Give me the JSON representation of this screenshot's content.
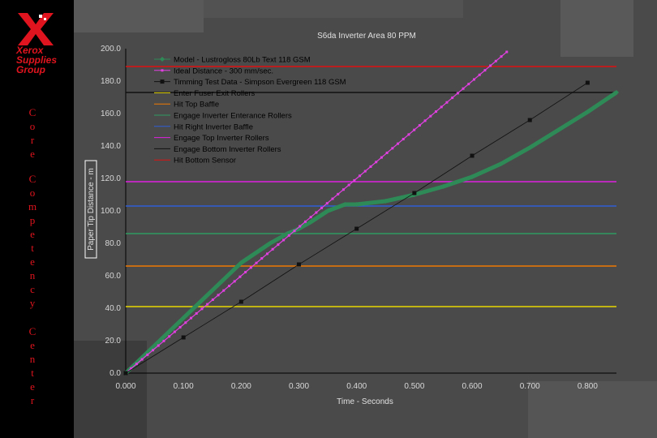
{
  "branding": {
    "logo_icon": "xerox-x-logo-icon",
    "brand_lines": [
      "Xerox",
      "Supplies",
      "Group"
    ],
    "vertical_words": [
      "Core",
      "Competency",
      "Center"
    ],
    "brand_color": "#e0141e"
  },
  "chart_data": {
    "type": "line",
    "title": "S6da Inverter Area 80 PPM",
    "xlabel": "Time - Seconds",
    "ylabel": "Paper Tip Distance - m",
    "xlim": [
      0,
      0.85
    ],
    "ylim": [
      0,
      200
    ],
    "x_ticks": [
      "0.000",
      "0.100",
      "0.200",
      "0.300",
      "0.400",
      "0.500",
      "0.600",
      "0.700",
      "0.800"
    ],
    "y_ticks": [
      "0.0",
      "20.0",
      "40.0",
      "60.0",
      "80.0",
      "100.0",
      "120.0",
      "140.0",
      "160.0",
      "180.0",
      "200.0"
    ],
    "grid": false,
    "legend_position": "top-left",
    "series": [
      {
        "name": "Model - Lustrogloss 80Lb Text 118 GSM",
        "color": "#2e8b57",
        "marker": "diamond",
        "x": [
          0,
          0.05,
          0.1,
          0.15,
          0.2,
          0.25,
          0.28,
          0.3,
          0.32,
          0.35,
          0.38,
          0.4,
          0.45,
          0.5,
          0.55,
          0.6,
          0.65,
          0.7,
          0.75,
          0.8,
          0.85
        ],
        "y": [
          0,
          17,
          34,
          51,
          68,
          80,
          86,
          89,
          93,
          100,
          104,
          104,
          106,
          110,
          115,
          121,
          129,
          139,
          150,
          161,
          173
        ]
      },
      {
        "name": "Ideal Distance  - 300 mm/sec.",
        "color": "#e040e0",
        "marker": "dot",
        "x": [
          0,
          0.1,
          0.2,
          0.3,
          0.4,
          0.5,
          0.6,
          0.66
        ],
        "y": [
          0,
          30,
          60,
          90,
          120,
          150,
          180,
          198
        ]
      },
      {
        "name": "Timming Test Data - Simpson Evergreen 118 GSM",
        "color": "#111111",
        "marker": "square",
        "x": [
          0,
          0.1,
          0.2,
          0.3,
          0.4,
          0.5,
          0.6,
          0.7,
          0.8
        ],
        "y": [
          0,
          22,
          44,
          67,
          89,
          111,
          134,
          156,
          179
        ]
      }
    ],
    "threshold_lines": [
      {
        "name": "Enter Fuser Exit Rollers",
        "y": 41,
        "color": "#e8d800"
      },
      {
        "name": "Hit Top Baffle",
        "y": 66,
        "color": "#f07800"
      },
      {
        "name": "Engage Inverter Enterance Rollers",
        "y": 86,
        "color": "#2e9a60"
      },
      {
        "name": "Hit Right Inverter Baffle",
        "y": 103,
        "color": "#2f5fd8"
      },
      {
        "name": "Engage Top Inverter Rollers",
        "y": 118,
        "color": "#e020e0"
      },
      {
        "name": "Engage Bottom Inverter Rollers",
        "y": 173,
        "color": "#111111"
      },
      {
        "name": "Hit Bottom Sensor",
        "y": 189,
        "color": "#e01010"
      }
    ]
  }
}
